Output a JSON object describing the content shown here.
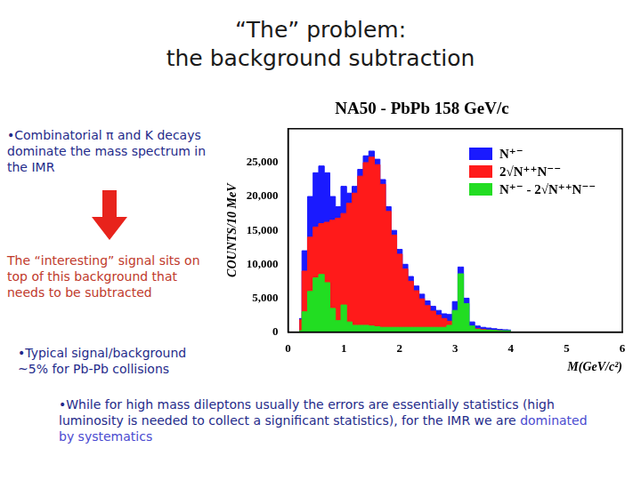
{
  "slide": {
    "title": [
      "“The” problem:",
      "the background subtraction"
    ],
    "bullet_1": "•Combinatorial π and K decays dominate the mass spectrum in the IMR",
    "arrow_note": "The “interesting” signal sits on top of this background that needs to be subtracted",
    "bullet_2": "•Typical signal/background ~5% for Pb-Pb collisions",
    "bullet_3": {
      "parts": [
        "•While for high mass dileptons usually the errors are essentially statistics (high luminosity is needed to collect a significant statistics), for the IMR we are",
        "dominated by systematics"
      ]
    }
  },
  "chart_data": {
    "type": "area",
    "title": "NA50 - PbPb 158 GeV/c",
    "x_label": "M(GeV/c²)",
    "y_label": "COUNTS/10 MeV",
    "line_style": "steps",
    "grid": false,
    "legend": "upper right",
    "xlim": [
      0,
      6
    ],
    "xticks": [
      0,
      1,
      2,
      3,
      4,
      5,
      6
    ],
    "ylim": [
      0,
      30000
    ],
    "yticks": [
      0,
      5000,
      10000,
      15000,
      20000,
      25000
    ],
    "x": [
      0.2,
      0.3,
      0.4,
      0.5,
      0.6,
      0.7,
      0.8,
      0.9,
      1.0,
      1.1,
      1.2,
      1.3,
      1.4,
      1.5,
      1.6,
      1.7,
      1.8,
      1.9,
      2.0,
      2.1,
      2.2,
      2.3,
      2.4,
      2.5,
      2.6,
      2.7,
      2.8,
      2.9,
      3.0,
      3.1,
      3.2,
      3.3,
      3.4,
      3.5,
      3.6,
      3.7,
      3.8,
      3.9,
      4.0
    ],
    "series": [
      {
        "name": "N⁺⁻",
        "color": "#1a1aff",
        "values": [
          2000,
          12000,
          20000,
          23500,
          24500,
          23500,
          20000,
          18500,
          21500,
          20500,
          21500,
          24000,
          26000,
          26700,
          25500,
          22500,
          18500,
          15000,
          12200,
          10000,
          8200,
          6800,
          5600,
          4600,
          3800,
          3200,
          2700,
          2600,
          4500,
          9600,
          5000,
          1500,
          900,
          700,
          600,
          500,
          400,
          350,
          300
        ]
      },
      {
        "name": "2√N⁺⁺N⁻⁻",
        "color": "#ff1a1a",
        "values": [
          1800,
          9000,
          14000,
          15500,
          16000,
          16200,
          16500,
          16800,
          17500,
          19000,
          20500,
          23000,
          25000,
          25800,
          24700,
          21800,
          17800,
          14300,
          11500,
          9300,
          7500,
          6100,
          4900,
          3900,
          3100,
          2500,
          2000,
          1600,
          1300,
          1000,
          800,
          600,
          500,
          400,
          300,
          250,
          200,
          150,
          100
        ]
      },
      {
        "name": "N⁺⁻ - 2√N⁺⁺N⁻⁻",
        "color": "#22dd22",
        "values": [
          200,
          3000,
          6000,
          8000,
          8500,
          7300,
          3500,
          1700,
          4000,
          1500,
          1000,
          1000,
          1000,
          900,
          800,
          700,
          700,
          700,
          700,
          700,
          700,
          700,
          700,
          700,
          700,
          700,
          700,
          1000,
          3200,
          8600,
          4200,
          900,
          400,
          300,
          300,
          250,
          200,
          200,
          200
        ]
      }
    ]
  }
}
